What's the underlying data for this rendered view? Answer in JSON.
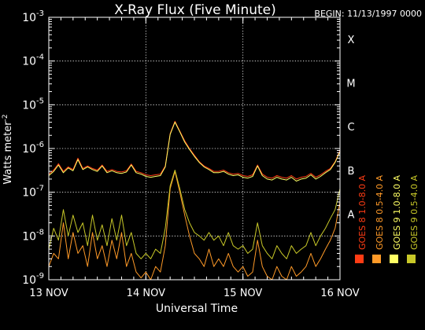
{
  "chart_data": {
    "type": "line",
    "title": "X-Ray Flux (Five Minute)",
    "begin_label": "BEGIN: 11/13/1997 0000",
    "xlabel": "Universal Time",
    "ylabel": "Watts meter",
    "ylabel_sup": "-2",
    "x_unit": "days since 13 NOV 1997 00:00 UT",
    "xlim": [
      0,
      3
    ],
    "x_ticks": [
      {
        "value": 0,
        "label": "13 NOV"
      },
      {
        "value": 1,
        "label": "14 NOV"
      },
      {
        "value": 2,
        "label": "15 NOV"
      },
      {
        "value": 3,
        "label": "16 NOV"
      }
    ],
    "yscale": "log",
    "ylim": [
      1e-09,
      0.001
    ],
    "y_ticks": [
      {
        "value": 1e-09,
        "base": "10",
        "exp": "-9"
      },
      {
        "value": 1e-08,
        "base": "10",
        "exp": "-8"
      },
      {
        "value": 1e-07,
        "base": "10",
        "exp": "-7"
      },
      {
        "value": 1e-06,
        "base": "10",
        "exp": "-6"
      },
      {
        "value": 1e-05,
        "base": "10",
        "exp": "-5"
      },
      {
        "value": 0.0001,
        "base": "10",
        "exp": "-4"
      },
      {
        "value": 0.001,
        "base": "10",
        "exp": "-3"
      }
    ],
    "flare_classes": [
      {
        "label": "A",
        "value": 1e-08
      },
      {
        "label": "B",
        "value": 1e-07
      },
      {
        "label": "C",
        "value": 1e-06
      },
      {
        "label": "M",
        "value": 1e-05
      },
      {
        "label": "X",
        "value": 0.0001
      }
    ],
    "legend": [
      {
        "label": "GOES 8 1.0-8.0 A",
        "color": "#ff3c14"
      },
      {
        "label": "GOES 8 0.5-4.0 A",
        "color": "#ff9a28"
      },
      {
        "label": "GOES 9 1.0-8.0 A",
        "color": "#ffff64"
      },
      {
        "label": "GOES 9 0.5-4.0 A",
        "color": "#c8c828"
      }
    ],
    "grid": true,
    "series": [
      {
        "name": "GOES 8 1.0-8.0 A",
        "color": "#ff3c14",
        "x": [
          0,
          0.05,
          0.1,
          0.15,
          0.2,
          0.25,
          0.3,
          0.35,
          0.4,
          0.45,
          0.5,
          0.55,
          0.6,
          0.65,
          0.7,
          0.75,
          0.8,
          0.85,
          0.9,
          0.95,
          1.0,
          1.05,
          1.1,
          1.15,
          1.2,
          1.25,
          1.3,
          1.35,
          1.4,
          1.45,
          1.5,
          1.55,
          1.6,
          1.65,
          1.7,
          1.75,
          1.8,
          1.85,
          1.9,
          1.95,
          2.0,
          2.05,
          2.1,
          2.15,
          2.2,
          2.25,
          2.3,
          2.35,
          2.4,
          2.45,
          2.5,
          2.55,
          2.6,
          2.65,
          2.7,
          2.75,
          2.8,
          2.85,
          2.9,
          2.95,
          3.0
        ],
        "y": [
          2.6e-07,
          3.2e-07,
          4.5e-07,
          3e-07,
          3.8e-07,
          3.3e-07,
          6e-07,
          3.5e-07,
          4e-07,
          3.5e-07,
          3.2e-07,
          4.2e-07,
          3e-07,
          3.3e-07,
          3e-07,
          2.9e-07,
          3.1e-07,
          4.4e-07,
          3e-07,
          2.8e-07,
          2.5e-07,
          2.4e-07,
          2.5e-07,
          2.6e-07,
          4e-07,
          2.2e-06,
          4.2e-06,
          2.5e-06,
          1.5e-06,
          1e-06,
          7e-07,
          5e-07,
          4e-07,
          3.5e-07,
          3e-07,
          3e-07,
          3.2e-07,
          2.8e-07,
          2.6e-07,
          2.7e-07,
          2.4e-07,
          2.3e-07,
          2.5e-07,
          4.2e-07,
          2.6e-07,
          2.2e-07,
          2.1e-07,
          2.4e-07,
          2.2e-07,
          2.1e-07,
          2.4e-07,
          2e-07,
          2.2e-07,
          2.3e-07,
          2.7e-07,
          2.2e-07,
          2.5e-07,
          3e-07,
          3.5e-07,
          5e-07,
          9e-07
        ]
      },
      {
        "name": "GOES 8 0.5-4.0 A",
        "color": "#ff9a28",
        "x": [
          0,
          0.05,
          0.1,
          0.15,
          0.2,
          0.25,
          0.3,
          0.35,
          0.4,
          0.45,
          0.5,
          0.55,
          0.6,
          0.65,
          0.7,
          0.75,
          0.8,
          0.85,
          0.9,
          0.95,
          1.0,
          1.05,
          1.1,
          1.15,
          1.2,
          1.25,
          1.3,
          1.35,
          1.4,
          1.45,
          1.5,
          1.55,
          1.6,
          1.65,
          1.7,
          1.75,
          1.8,
          1.85,
          1.9,
          1.95,
          2.0,
          2.05,
          2.1,
          2.15,
          2.2,
          2.25,
          2.3,
          2.35,
          2.4,
          2.45,
          2.5,
          2.55,
          2.6,
          2.65,
          2.7,
          2.75,
          2.8,
          2.85,
          2.9,
          2.95,
          3.0
        ],
        "y": [
          2e-09,
          4e-09,
          3e-09,
          2e-08,
          3e-09,
          1.2e-08,
          4e-09,
          6e-09,
          2e-09,
          1.2e-08,
          3e-09,
          6e-09,
          2e-09,
          8e-09,
          3e-09,
          1.2e-08,
          2e-09,
          4e-09,
          1.5e-09,
          1.1e-09,
          1.5e-09,
          1e-09,
          2e-09,
          1.5e-09,
          6e-09,
          1.2e-07,
          3e-07,
          1e-07,
          3e-08,
          1e-08,
          4e-09,
          3e-09,
          2e-09,
          5e-09,
          2e-09,
          3e-09,
          2e-09,
          4e-09,
          2e-09,
          1.5e-09,
          2e-09,
          1.2e-09,
          1.5e-09,
          8e-09,
          2e-09,
          1.2e-09,
          1e-09,
          2e-09,
          1.2e-09,
          1e-09,
          2e-09,
          1.2e-09,
          1.5e-09,
          2e-09,
          4e-09,
          2e-09,
          3e-09,
          5e-09,
          8e-09,
          1.5e-08,
          6e-08
        ]
      },
      {
        "name": "GOES 9 1.0-8.0 A",
        "color": "#ffff64",
        "x": [
          0,
          0.05,
          0.1,
          0.15,
          0.2,
          0.25,
          0.3,
          0.35,
          0.4,
          0.45,
          0.5,
          0.55,
          0.6,
          0.65,
          0.7,
          0.75,
          0.8,
          0.85,
          0.9,
          0.95,
          1.0,
          1.05,
          1.1,
          1.15,
          1.2,
          1.25,
          1.3,
          1.35,
          1.4,
          1.45,
          1.5,
          1.55,
          1.6,
          1.65,
          1.7,
          1.75,
          1.8,
          1.85,
          1.9,
          1.95,
          2.0,
          2.05,
          2.1,
          2.15,
          2.2,
          2.25,
          2.3,
          2.35,
          2.4,
          2.45,
          2.5,
          2.55,
          2.6,
          2.65,
          2.7,
          2.75,
          2.8,
          2.85,
          2.9,
          2.95,
          3.0
        ],
        "y": [
          2.4e-07,
          3e-07,
          4.2e-07,
          2.8e-07,
          3.6e-07,
          3.1e-07,
          5.6e-07,
          3.3e-07,
          3.8e-07,
          3.3e-07,
          3e-07,
          4e-07,
          2.8e-07,
          3.1e-07,
          2.8e-07,
          2.7e-07,
          2.9e-07,
          4.2e-07,
          2.8e-07,
          2.6e-07,
          2.3e-07,
          2.2e-07,
          2.3e-07,
          2.4e-07,
          3.8e-07,
          2.1e-06,
          4e-06,
          2.4e-06,
          1.4e-06,
          9.5e-07,
          6.6e-07,
          4.8e-07,
          3.8e-07,
          3.3e-07,
          2.8e-07,
          2.8e-07,
          3e-07,
          2.6e-07,
          2.4e-07,
          2.5e-07,
          2.2e-07,
          2.1e-07,
          2.3e-07,
          4e-07,
          2.4e-07,
          2e-07,
          1.9e-07,
          2.2e-07,
          2e-07,
          1.9e-07,
          2.2e-07,
          1.8e-07,
          2e-07,
          2.1e-07,
          2.5e-07,
          2e-07,
          2.3e-07,
          2.8e-07,
          3.3e-07,
          4.8e-07,
          8.5e-07
        ]
      },
      {
        "name": "GOES 9 0.5-4.0 A",
        "color": "#c8c828",
        "x": [
          0,
          0.05,
          0.1,
          0.15,
          0.2,
          0.25,
          0.3,
          0.35,
          0.4,
          0.45,
          0.5,
          0.55,
          0.6,
          0.65,
          0.7,
          0.75,
          0.8,
          0.85,
          0.9,
          0.95,
          1.0,
          1.05,
          1.1,
          1.15,
          1.2,
          1.25,
          1.3,
          1.35,
          1.4,
          1.45,
          1.5,
          1.55,
          1.6,
          1.65,
          1.7,
          1.75,
          1.8,
          1.85,
          1.9,
          1.95,
          2.0,
          2.05,
          2.1,
          2.15,
          2.2,
          2.25,
          2.3,
          2.35,
          2.4,
          2.45,
          2.5,
          2.55,
          2.6,
          2.65,
          2.7,
          2.75,
          2.8,
          2.85,
          2.9,
          2.95,
          3.0
        ],
        "y": [
          5e-09,
          1.5e-08,
          8e-09,
          4e-08,
          1e-08,
          3e-08,
          1.2e-08,
          2e-08,
          6e-09,
          3e-08,
          8e-09,
          1.8e-08,
          6e-09,
          2.5e-08,
          8e-09,
          3e-08,
          6e-09,
          1.2e-08,
          4e-09,
          3e-09,
          4e-09,
          3e-09,
          5e-09,
          4e-09,
          1.5e-08,
          1.4e-07,
          3.2e-07,
          1.2e-07,
          4e-08,
          2e-08,
          1.2e-08,
          1e-08,
          8e-09,
          1.2e-08,
          8e-09,
          1e-08,
          6e-09,
          1.2e-08,
          6e-09,
          5e-09,
          6e-09,
          4e-09,
          5e-09,
          2e-08,
          6e-09,
          4e-09,
          3e-09,
          6e-09,
          4e-09,
          3e-09,
          6e-09,
          4e-09,
          5e-09,
          6e-09,
          1.2e-08,
          6e-09,
          1e-08,
          1.5e-08,
          2.5e-08,
          4e-08,
          1.2e-07
        ]
      }
    ]
  }
}
